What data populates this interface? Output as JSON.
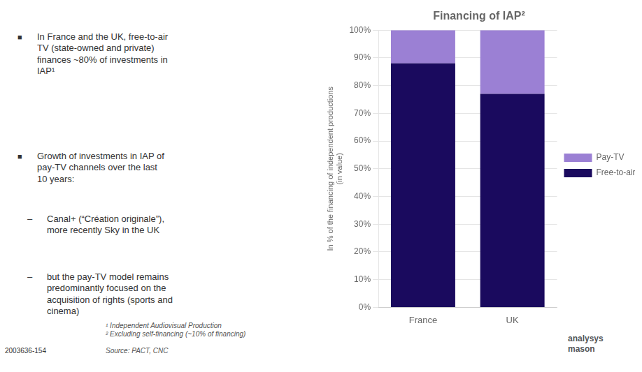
{
  "chart_data": {
    "type": "bar",
    "title": "Financing of IAP²",
    "categories": [
      "France",
      "UK"
    ],
    "series": [
      {
        "name": "Free-to-air",
        "color": "#1a0a5e",
        "values": [
          88,
          77
        ]
      },
      {
        "name": "Pay-TV",
        "color": "#9b80d4",
        "values": [
          12,
          23
        ]
      }
    ],
    "stacked": true,
    "ylabel": "In % of the financing of independent productions\n(in value)",
    "ylim": [
      0,
      100
    ],
    "yticks": [
      {
        "value": 0,
        "label": "0%"
      },
      {
        "value": 10,
        "label": "10%"
      },
      {
        "value": 20,
        "label": "20%"
      },
      {
        "value": 30,
        "label": "30%"
      },
      {
        "value": 40,
        "label": "40%"
      },
      {
        "value": 50,
        "label": "50%"
      },
      {
        "value": 60,
        "label": "60%"
      },
      {
        "value": 70,
        "label": "70%"
      },
      {
        "value": 80,
        "label": "80%"
      },
      {
        "value": 90,
        "label": "90%"
      },
      {
        "value": 100,
        "label": "100%"
      }
    ],
    "grid": true,
    "legend": "right",
    "annotations": [
      "■",
      "In France and the UK, free-to-air\nTV (state-owned and private)\nfinances ~80% of investments in\nIAP¹",
      "■",
      "Growth of investments in IAP of\npay-TV channels over the last\n10 years:",
      "–",
      "Canal+ (“Création originale”),\nmore recently Sky in the UK",
      "–",
      "but the pay-TV model remains\npredominantly focused on the\nacquisition of rights (sports and\ncinema)",
      "¹ Independent Audiovisual Production\n² Excluding self-financing (~10% of financing)",
      "Source: PACT, CNC",
      "2003636-154",
      "analysys\nmason"
    ]
  }
}
